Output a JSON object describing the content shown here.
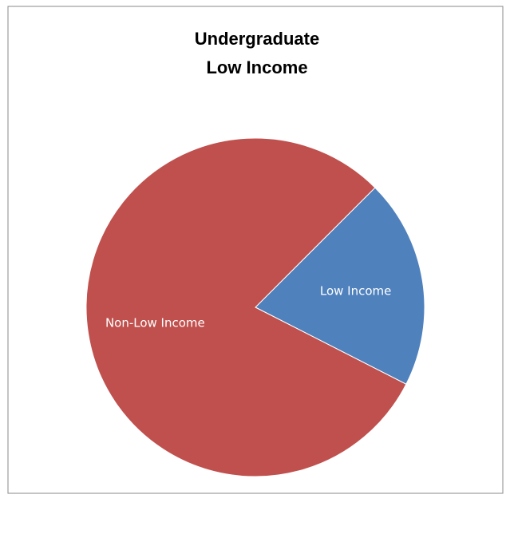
{
  "chart_data": {
    "type": "pie",
    "title": [
      "Undergraduate",
      "Low Income"
    ],
    "categories": [
      "Low Income",
      "Non-Low Income"
    ],
    "values": [
      20,
      80
    ],
    "colors": [
      "#4f81bd",
      "#c0504d"
    ],
    "start_angle": 45
  }
}
